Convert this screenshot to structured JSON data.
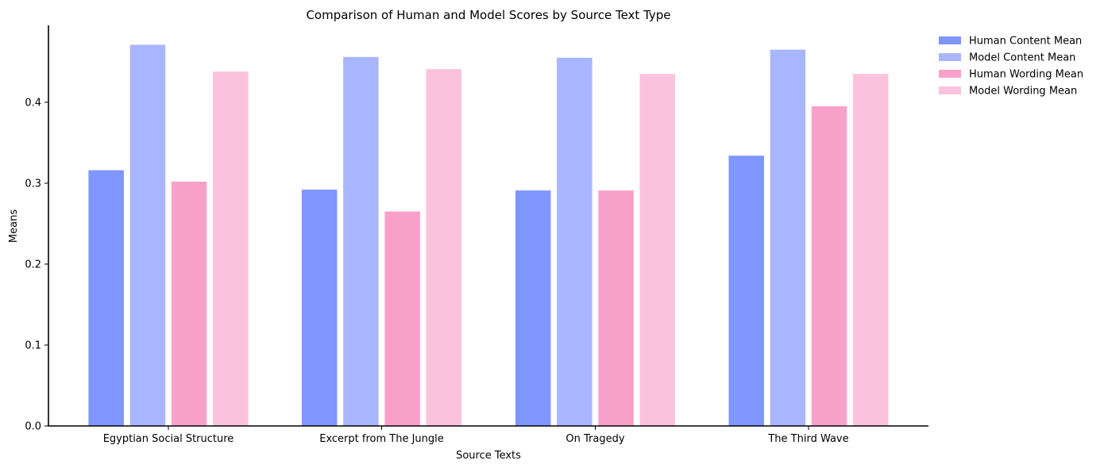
{
  "chart_data": {
    "type": "bar",
    "title": "Comparison of Human and Model Scores by Source Text Type",
    "xlabel": "Source Texts",
    "ylabel": "Means",
    "categories": [
      "Egyptian Social Structure",
      "Excerpt from The Jungle",
      "On Tragedy",
      "The Third Wave"
    ],
    "series": [
      {
        "name": "Human Content Mean",
        "color": "#7f95ff",
        "values": [
          0.316,
          0.292,
          0.291,
          0.334
        ]
      },
      {
        "name": "Model Content Mean",
        "color": "#a8b6ff",
        "values": [
          0.471,
          0.456,
          0.455,
          0.465
        ]
      },
      {
        "name": "Human Wording Mean",
        "color": "#f9a1cb",
        "values": [
          0.302,
          0.265,
          0.291,
          0.395
        ]
      },
      {
        "name": "Model Wording Mean",
        "color": "#fbc2de",
        "values": [
          0.438,
          0.441,
          0.435,
          0.435
        ]
      }
    ],
    "ylim": [
      0,
      0.495
    ],
    "yticks": [
      0.0,
      0.1,
      0.2,
      0.3,
      0.4
    ],
    "ytick_labels": [
      "0.0",
      "0.1",
      "0.2",
      "0.3",
      "0.4"
    ],
    "grid": false,
    "legend_position": "outside-top-right"
  }
}
